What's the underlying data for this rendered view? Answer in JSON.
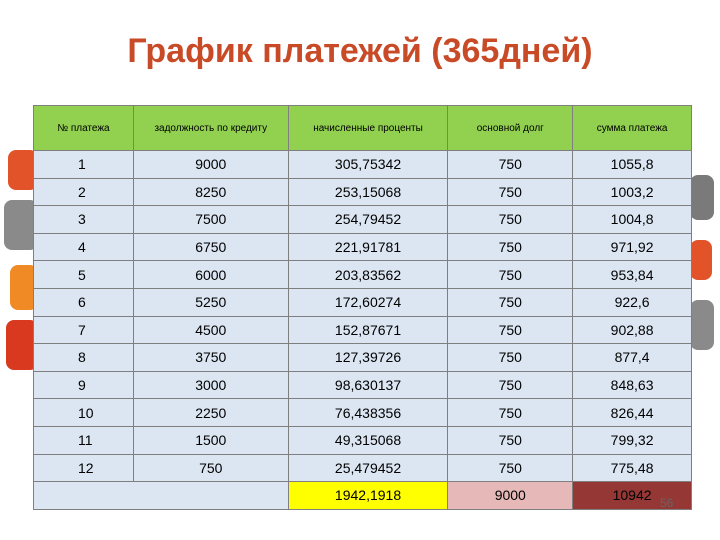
{
  "header": {
    "title": "График платежей (365дней)"
  },
  "table": {
    "columns": [
      "№ платежа",
      "задолжность по кредиту",
      "начисленные проценты",
      "основной долг",
      "сумма платежа"
    ],
    "rows": [
      [
        "1",
        "9000",
        "305,75342",
        "750",
        "1055,8"
      ],
      [
        "2",
        "8250",
        "253,15068",
        "750",
        "1003,2"
      ],
      [
        "3",
        "7500",
        "254,79452",
        "750",
        "1004,8"
      ],
      [
        "4",
        "6750",
        "221,91781",
        "750",
        "971,92"
      ],
      [
        "5",
        "6000",
        "203,83562",
        "750",
        "953,84"
      ],
      [
        "6",
        "5250",
        "172,60274",
        "750",
        "922,6"
      ],
      [
        "7",
        "4500",
        "152,87671",
        "750",
        "902,88"
      ],
      [
        "8",
        "3750",
        "127,39726",
        "750",
        "877,4"
      ],
      [
        "9",
        "3000",
        "98,630137",
        "750",
        "848,63"
      ],
      [
        "10",
        "2250",
        "76,438356",
        "750",
        "826,44"
      ],
      [
        "11",
        "1500",
        "49,315068",
        "750",
        "799,32"
      ],
      [
        "12",
        "750",
        "25,479452",
        "750",
        "775,48"
      ]
    ],
    "totals": [
      "1942,1918",
      "9000",
      "10942"
    ]
  },
  "footer": {
    "page_number": "56"
  }
}
